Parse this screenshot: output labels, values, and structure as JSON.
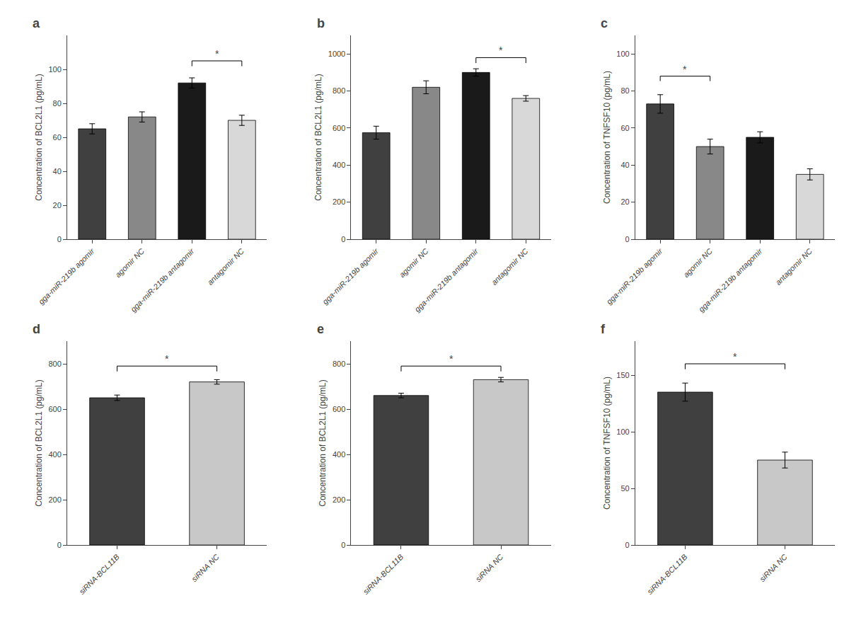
{
  "chart_data": [
    {
      "type": "bar",
      "title": "a",
      "ylabel": "Concentration of BCL2L1 (pg/mL)",
      "categories": [
        "gga-miR-219b agomir",
        "agomir NC",
        "gga-miR-219b antagomir",
        "antagomir NC"
      ],
      "values": [
        65,
        72,
        92,
        70
      ],
      "errors": [
        3,
        3,
        3,
        3
      ],
      "colors": [
        "#404040",
        "#888888",
        "#1a1a1a",
        "#d8d8d8"
      ],
      "ylim": [
        0,
        120
      ],
      "yticks": [
        0,
        20,
        40,
        60,
        80,
        100
      ],
      "grid": false,
      "annotations": [
        {
          "text": "*",
          "from": "gga-miR-219b antagomir",
          "to": "antagomir NC",
          "y": 105
        }
      ]
    },
    {
      "type": "bar",
      "title": "b",
      "ylabel": "Concentration of BCL2L1 (pg/mL)",
      "categories": [
        "gga-miR-219b agomir",
        "agomir NC",
        "gga-miR-219b antagomir",
        "antagomir NC"
      ],
      "values": [
        575,
        820,
        900,
        760
      ],
      "errors": [
        35,
        35,
        20,
        15
      ],
      "colors": [
        "#404040",
        "#888888",
        "#1a1a1a",
        "#d8d8d8"
      ],
      "ylim": [
        0,
        1100
      ],
      "yticks": [
        0,
        200,
        400,
        600,
        800,
        1000
      ],
      "grid": false,
      "annotations": [
        {
          "text": "*",
          "from": "gga-miR-219b antagomir",
          "to": "antagomir NC",
          "y": 980
        }
      ]
    },
    {
      "type": "bar",
      "title": "c",
      "ylabel": "Concentration of TNFSF10 (pg/mL)",
      "categories": [
        "gga-miR-219b agomir",
        "agomir NC",
        "gga-miR-219b antagomir",
        "antagomir NC"
      ],
      "values": [
        73,
        50,
        55,
        35
      ],
      "errors": [
        5,
        4,
        3,
        3
      ],
      "colors": [
        "#404040",
        "#888888",
        "#1a1a1a",
        "#d8d8d8"
      ],
      "ylim": [
        0,
        110
      ],
      "yticks": [
        0,
        20,
        40,
        60,
        80,
        100
      ],
      "grid": false,
      "annotations": [
        {
          "text": "*",
          "from": "gga-miR-219b agomir",
          "to": "agomir NC",
          "y": 88
        }
      ]
    },
    {
      "type": "bar",
      "title": "d",
      "ylabel": "Concentration of BCL2L1 (pg/mL)",
      "categories": [
        "siRNA-BCL11B",
        "siRNA NC"
      ],
      "values": [
        650,
        720
      ],
      "errors": [
        12,
        10
      ],
      "colors": [
        "#404040",
        "#c8c8c8"
      ],
      "ylim": [
        0,
        900
      ],
      "yticks": [
        0,
        200,
        400,
        600,
        800
      ],
      "grid": false,
      "annotations": [
        {
          "text": "*",
          "from": "siRNA-BCL11B",
          "to": "siRNA NC",
          "y": 790
        }
      ]
    },
    {
      "type": "bar",
      "title": "e",
      "ylabel": "Concentration of BCL2L1 (pg/mL)",
      "categories": [
        "siRNA-BCL11B",
        "siRNA NC"
      ],
      "values": [
        660,
        730
      ],
      "errors": [
        10,
        10
      ],
      "colors": [
        "#404040",
        "#c8c8c8"
      ],
      "ylim": [
        0,
        900
      ],
      "yticks": [
        0,
        200,
        400,
        600,
        800
      ],
      "grid": false,
      "annotations": [
        {
          "text": "*",
          "from": "siRNA-BCL11B",
          "to": "siRNA NC",
          "y": 790
        }
      ]
    },
    {
      "type": "bar",
      "title": "f",
      "ylabel": "Concentration of TNFSF10 (pg/mL)",
      "categories": [
        "siRNA-BCL11B",
        "siRNA NC"
      ],
      "values": [
        135,
        75
      ],
      "errors": [
        8,
        7
      ],
      "colors": [
        "#404040",
        "#c8c8c8"
      ],
      "ylim": [
        0,
        180
      ],
      "yticks": [
        0,
        50,
        100,
        150
      ],
      "grid": false,
      "annotations": [
        {
          "text": "*",
          "from": "siRNA-BCL11B",
          "to": "siRNA NC",
          "y": 160
        }
      ]
    }
  ]
}
